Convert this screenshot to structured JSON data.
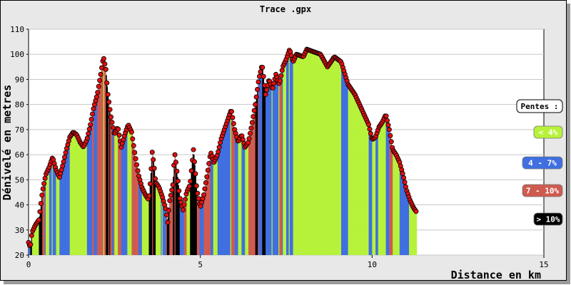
{
  "chart_data": {
    "type": "bar",
    "title": "Trace .gpx",
    "xlabel": "Distance en km",
    "ylabel": "Dénivelé en metres",
    "xlim": [
      0,
      15
    ],
    "ylim": [
      20,
      110
    ],
    "x_ticks": [
      "0",
      "5",
      "10",
      "15"
    ],
    "y_ticks": [
      "20",
      "30",
      "40",
      "50",
      "60",
      "70",
      "80",
      "90",
      "100",
      "110"
    ],
    "grid": "horizontal",
    "legend_placement": "right",
    "legend": {
      "title": "Pentes :",
      "entries": [
        {
          "label": "< 4%",
          "color": "#b7f23a"
        },
        {
          "label": "4 - 7%",
          "color": "#3f6fe0"
        },
        {
          "label": "7 - 10%",
          "color": "#cf5b50"
        },
        {
          "label": "> 10%",
          "color": "#000000"
        }
      ]
    },
    "marker_color": "#e01010",
    "profile": [
      [
        0.0,
        25
      ],
      [
        0.05,
        23
      ],
      [
        0.1,
        29
      ],
      [
        0.2,
        32
      ],
      [
        0.3,
        34
      ],
      [
        0.4,
        45
      ],
      [
        0.5,
        52
      ],
      [
        0.6,
        55
      ],
      [
        0.7,
        59
      ],
      [
        0.8,
        54
      ],
      [
        0.9,
        51
      ],
      [
        1.0,
        56
      ],
      [
        1.1,
        62
      ],
      [
        1.2,
        67
      ],
      [
        1.3,
        69
      ],
      [
        1.4,
        68
      ],
      [
        1.5,
        65
      ],
      [
        1.6,
        63
      ],
      [
        1.7,
        66
      ],
      [
        1.8,
        72
      ],
      [
        1.9,
        79
      ],
      [
        2.0,
        84
      ],
      [
        2.1,
        92
      ],
      [
        2.18,
        99
      ],
      [
        2.25,
        94
      ],
      [
        2.3,
        85
      ],
      [
        2.4,
        75
      ],
      [
        2.5,
        68
      ],
      [
        2.6,
        71
      ],
      [
        2.7,
        63
      ],
      [
        2.8,
        68
      ],
      [
        2.9,
        72
      ],
      [
        3.0,
        69
      ],
      [
        3.1,
        60
      ],
      [
        3.2,
        52
      ],
      [
        3.3,
        47
      ],
      [
        3.4,
        44
      ],
      [
        3.5,
        42
      ],
      [
        3.55,
        50
      ],
      [
        3.6,
        61
      ],
      [
        3.65,
        56
      ],
      [
        3.7,
        49
      ],
      [
        3.8,
        47
      ],
      [
        3.9,
        43
      ],
      [
        4.0,
        38
      ],
      [
        4.05,
        33
      ],
      [
        4.1,
        41
      ],
      [
        4.2,
        48
      ],
      [
        4.25,
        61
      ],
      [
        4.3,
        56
      ],
      [
        4.4,
        43
      ],
      [
        4.5,
        38
      ],
      [
        4.6,
        45
      ],
      [
        4.7,
        48
      ],
      [
        4.8,
        62
      ],
      [
        4.9,
        46
      ],
      [
        5.0,
        39
      ],
      [
        5.1,
        44
      ],
      [
        5.2,
        52
      ],
      [
        5.3,
        61
      ],
      [
        5.4,
        57
      ],
      [
        5.5,
        60
      ],
      [
        5.6,
        66
      ],
      [
        5.7,
        70
      ],
      [
        5.8,
        74
      ],
      [
        5.9,
        78
      ],
      [
        6.0,
        70
      ],
      [
        6.1,
        65
      ],
      [
        6.2,
        68
      ],
      [
        6.3,
        63
      ],
      [
        6.4,
        65
      ],
      [
        6.5,
        72
      ],
      [
        6.6,
        80
      ],
      [
        6.7,
        90
      ],
      [
        6.8,
        96
      ],
      [
        6.9,
        84
      ],
      [
        7.0,
        90
      ],
      [
        7.1,
        86
      ],
      [
        7.2,
        92
      ],
      [
        7.3,
        88
      ],
      [
        7.4,
        95
      ],
      [
        7.5,
        98
      ],
      [
        7.6,
        102
      ],
      [
        7.7,
        97
      ],
      [
        7.8,
        100
      ],
      [
        8.0,
        99
      ],
      [
        8.1,
        102
      ],
      [
        8.3,
        101
      ],
      [
        8.5,
        100
      ],
      [
        8.7,
        95
      ],
      [
        8.9,
        99
      ],
      [
        9.1,
        97
      ],
      [
        9.3,
        88
      ],
      [
        9.5,
        84
      ],
      [
        9.7,
        78
      ],
      [
        9.9,
        72
      ],
      [
        10.0,
        66
      ],
      [
        10.1,
        67
      ],
      [
        10.2,
        71
      ],
      [
        10.3,
        73
      ],
      [
        10.4,
        76
      ],
      [
        10.5,
        70
      ],
      [
        10.6,
        62
      ],
      [
        10.7,
        60
      ],
      [
        10.8,
        57
      ],
      [
        10.9,
        52
      ],
      [
        11.0,
        46
      ],
      [
        11.1,
        42
      ],
      [
        11.2,
        39
      ],
      [
        11.3,
        37
      ]
    ]
  }
}
